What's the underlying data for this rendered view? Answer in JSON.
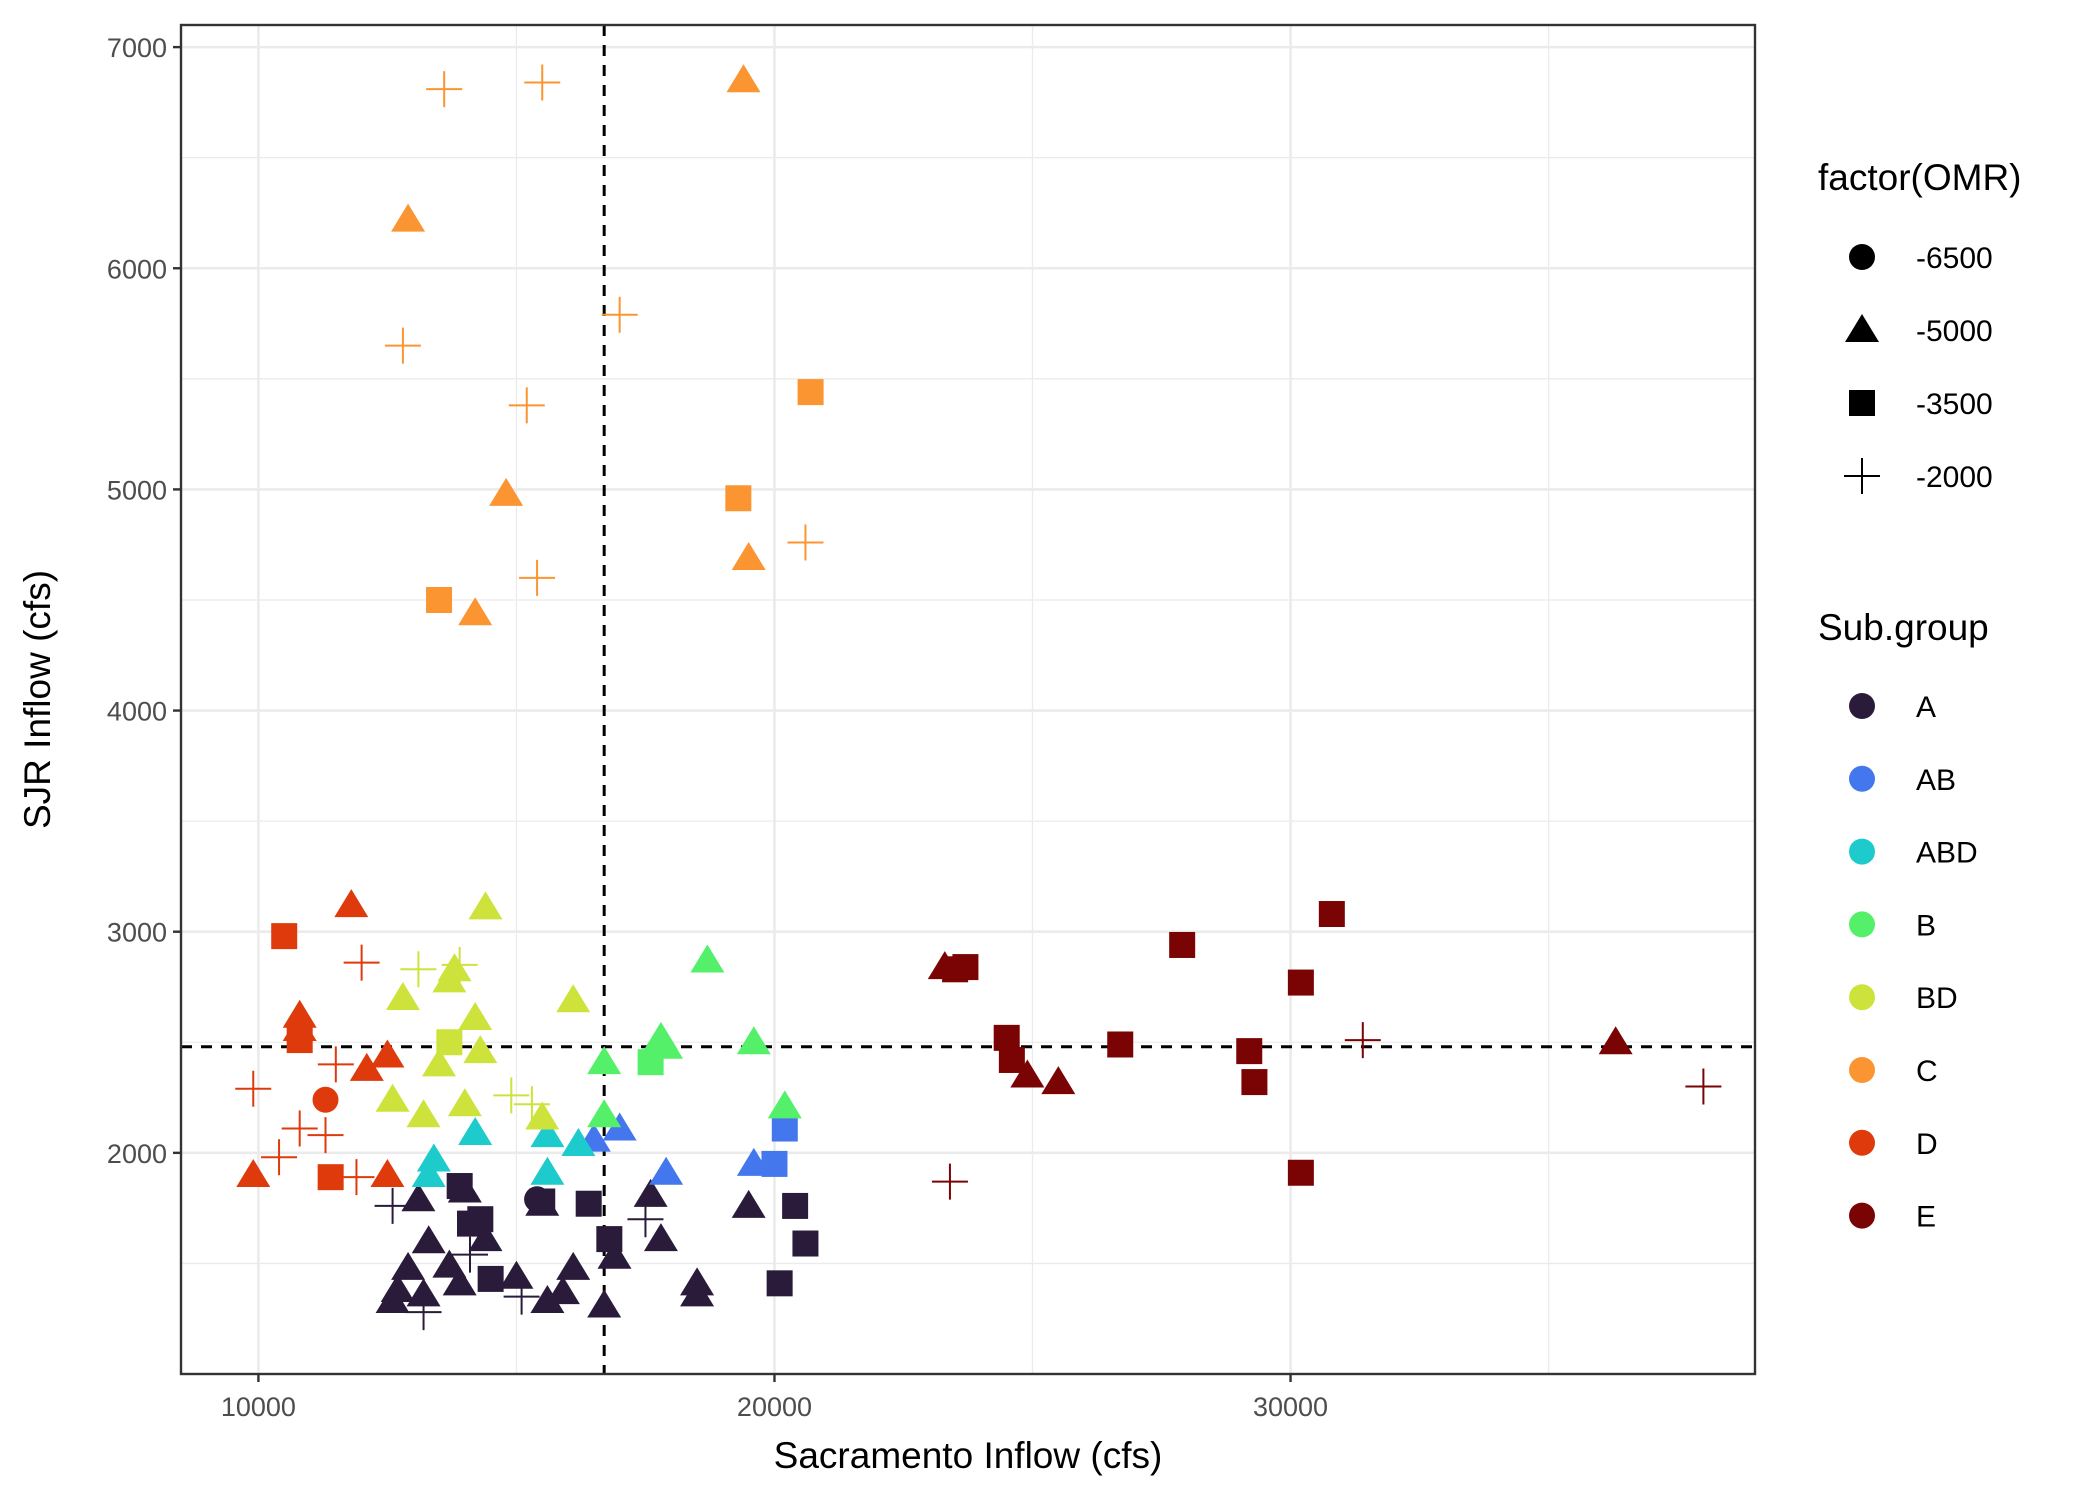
{
  "chart_data": {
    "type": "scatter",
    "title": "",
    "xlabel": "Sacramento Inflow (cfs)",
    "ylabel": "SJR Inflow (cfs)",
    "xlim": [
      8500,
      39000
    ],
    "ylim": [
      1000,
      7100
    ],
    "xticks": [
      10000,
      20000,
      30000
    ],
    "yticks": [
      2000,
      3000,
      4000,
      5000,
      6000,
      7000
    ],
    "x_tick_labels": [
      "10000",
      "20000",
      "30000"
    ],
    "y_tick_labels": [
      "2000",
      "3000",
      "4000",
      "5000",
      "6000",
      "7000"
    ],
    "grid": true,
    "reference_lines": {
      "vertical_x": 16700,
      "horizontal_y": 2480,
      "style": "dashed"
    },
    "legend_position": "right",
    "shape_legend": {
      "title": "factor(OMR)",
      "items": [
        {
          "label": "-6500",
          "shape": "circle"
        },
        {
          "label": "-5000",
          "shape": "triangle"
        },
        {
          "label": "-3500",
          "shape": "square"
        },
        {
          "label": "-2000",
          "shape": "plus"
        }
      ]
    },
    "color_legend": {
      "title": "Sub.group",
      "items": [
        {
          "label": "A",
          "color": "#2b1b3b"
        },
        {
          "label": "AB",
          "color": "#4477ee"
        },
        {
          "label": "ABD",
          "color": "#1ecbcc"
        },
        {
          "label": "B",
          "color": "#55f06a"
        },
        {
          "label": "BD",
          "color": "#cde33c"
        },
        {
          "label": "C",
          "color": "#fb9532"
        },
        {
          "label": "D",
          "color": "#de3a0c"
        },
        {
          "label": "E",
          "color": "#7a0403"
        }
      ]
    },
    "series": [
      {
        "group": "A",
        "points": [
          {
            "x": 12600,
            "y": 1330,
            "omr": "-5000"
          },
          {
            "x": 12700,
            "y": 1380,
            "omr": "-5000"
          },
          {
            "x": 12900,
            "y": 1480,
            "omr": "-5000"
          },
          {
            "x": 13100,
            "y": 1790,
            "omr": "-5000"
          },
          {
            "x": 13200,
            "y": 1360,
            "omr": "-5000"
          },
          {
            "x": 13300,
            "y": 1600,
            "omr": "-5000"
          },
          {
            "x": 13700,
            "y": 1490,
            "omr": "-5000"
          },
          {
            "x": 13900,
            "y": 1410,
            "omr": "-5000"
          },
          {
            "x": 14000,
            "y": 1830,
            "omr": "-5000"
          },
          {
            "x": 14400,
            "y": 1610,
            "omr": "-5000"
          },
          {
            "x": 15000,
            "y": 1440,
            "omr": "-5000"
          },
          {
            "x": 15500,
            "y": 1770,
            "omr": "-5000"
          },
          {
            "x": 15600,
            "y": 1330,
            "omr": "-5000"
          },
          {
            "x": 15900,
            "y": 1370,
            "omr": "-5000"
          },
          {
            "x": 16100,
            "y": 1480,
            "omr": "-5000"
          },
          {
            "x": 16700,
            "y": 1310,
            "omr": "-5000"
          },
          {
            "x": 16900,
            "y": 1530,
            "omr": "-5000"
          },
          {
            "x": 17600,
            "y": 1810,
            "omr": "-5000"
          },
          {
            "x": 17800,
            "y": 1610,
            "omr": "-5000"
          },
          {
            "x": 18500,
            "y": 1360,
            "omr": "-5000"
          },
          {
            "x": 18500,
            "y": 1410,
            "omr": "-5000"
          },
          {
            "x": 19500,
            "y": 1760,
            "omr": "-5000"
          },
          {
            "x": 15400,
            "y": 1790,
            "omr": "-6500"
          },
          {
            "x": 13900,
            "y": 1850,
            "omr": "-3500"
          },
          {
            "x": 14300,
            "y": 1700,
            "omr": "-3500"
          },
          {
            "x": 14100,
            "y": 1680,
            "omr": "-3500"
          },
          {
            "x": 14500,
            "y": 1430,
            "omr": "-3500"
          },
          {
            "x": 15500,
            "y": 1780,
            "omr": "-3500"
          },
          {
            "x": 16400,
            "y": 1770,
            "omr": "-3500"
          },
          {
            "x": 16800,
            "y": 1610,
            "omr": "-3500"
          },
          {
            "x": 20400,
            "y": 1760,
            "omr": "-3500"
          },
          {
            "x": 20600,
            "y": 1590,
            "omr": "-3500"
          },
          {
            "x": 20100,
            "y": 1410,
            "omr": "-3500"
          },
          {
            "x": 12600,
            "y": 1760,
            "omr": "-2000"
          },
          {
            "x": 13200,
            "y": 1280,
            "omr": "-2000"
          },
          {
            "x": 14100,
            "y": 1540,
            "omr": "-2000"
          },
          {
            "x": 15100,
            "y": 1350,
            "omr": "-2000"
          },
          {
            "x": 17500,
            "y": 1700,
            "omr": "-2000"
          }
        ]
      },
      {
        "group": "AB",
        "points": [
          {
            "x": 16500,
            "y": 2060,
            "omr": "-5000"
          },
          {
            "x": 17000,
            "y": 2110,
            "omr": "-5000"
          },
          {
            "x": 17900,
            "y": 1910,
            "omr": "-5000"
          },
          {
            "x": 19600,
            "y": 1950,
            "omr": "-5000"
          },
          {
            "x": 20200,
            "y": 2110,
            "omr": "-3500"
          },
          {
            "x": 20000,
            "y": 1950,
            "omr": "-3500"
          }
        ]
      },
      {
        "group": "ABD",
        "points": [
          {
            "x": 13300,
            "y": 1900,
            "omr": "-5000"
          },
          {
            "x": 13400,
            "y": 1970,
            "omr": "-5000"
          },
          {
            "x": 14200,
            "y": 2090,
            "omr": "-5000"
          },
          {
            "x": 15600,
            "y": 2080,
            "omr": "-5000"
          },
          {
            "x": 15600,
            "y": 1910,
            "omr": "-5000"
          },
          {
            "x": 16200,
            "y": 2040,
            "omr": "-5000"
          }
        ]
      },
      {
        "group": "B",
        "points": [
          {
            "x": 16700,
            "y": 2410,
            "omr": "-5000"
          },
          {
            "x": 16700,
            "y": 2170,
            "omr": "-5000"
          },
          {
            "x": 17800,
            "y": 2520,
            "omr": "-5000"
          },
          {
            "x": 17900,
            "y": 2480,
            "omr": "-5000"
          },
          {
            "x": 18700,
            "y": 2870,
            "omr": "-5000"
          },
          {
            "x": 19600,
            "y": 2500,
            "omr": "-5000"
          },
          {
            "x": 20200,
            "y": 2210,
            "omr": "-5000"
          },
          {
            "x": 17600,
            "y": 2410,
            "omr": "-3500"
          }
        ]
      },
      {
        "group": "BD",
        "points": [
          {
            "x": 12600,
            "y": 2240,
            "omr": "-5000"
          },
          {
            "x": 12800,
            "y": 2700,
            "omr": "-5000"
          },
          {
            "x": 13200,
            "y": 2170,
            "omr": "-5000"
          },
          {
            "x": 13500,
            "y": 2400,
            "omr": "-5000"
          },
          {
            "x": 13700,
            "y": 2780,
            "omr": "-5000"
          },
          {
            "x": 13800,
            "y": 2830,
            "omr": "-5000"
          },
          {
            "x": 14000,
            "y": 2220,
            "omr": "-5000"
          },
          {
            "x": 14200,
            "y": 2610,
            "omr": "-5000"
          },
          {
            "x": 14300,
            "y": 2460,
            "omr": "-5000"
          },
          {
            "x": 14400,
            "y": 3110,
            "omr": "-5000"
          },
          {
            "x": 15500,
            "y": 2160,
            "omr": "-5000"
          },
          {
            "x": 16100,
            "y": 2690,
            "omr": "-5000"
          },
          {
            "x": 13700,
            "y": 2500,
            "omr": "-3500"
          },
          {
            "x": 13100,
            "y": 2830,
            "omr": "-2000"
          },
          {
            "x": 13900,
            "y": 2850,
            "omr": "-2000"
          },
          {
            "x": 14900,
            "y": 2260,
            "omr": "-2000"
          },
          {
            "x": 15300,
            "y": 2220,
            "omr": "-2000"
          }
        ]
      },
      {
        "group": "C",
        "points": [
          {
            "x": 12900,
            "y": 6220,
            "omr": "-5000"
          },
          {
            "x": 14200,
            "y": 4440,
            "omr": "-5000"
          },
          {
            "x": 14800,
            "y": 4980,
            "omr": "-5000"
          },
          {
            "x": 19400,
            "y": 6850,
            "omr": "-5000"
          },
          {
            "x": 19500,
            "y": 4690,
            "omr": "-5000"
          },
          {
            "x": 13500,
            "y": 4500,
            "omr": "-3500"
          },
          {
            "x": 19300,
            "y": 4960,
            "omr": "-3500"
          },
          {
            "x": 20700,
            "y": 5440,
            "omr": "-3500"
          },
          {
            "x": 13600,
            "y": 6810,
            "omr": "-2000"
          },
          {
            "x": 15500,
            "y": 6840,
            "omr": "-2000"
          },
          {
            "x": 12800,
            "y": 5650,
            "omr": "-2000"
          },
          {
            "x": 17000,
            "y": 5790,
            "omr": "-2000"
          },
          {
            "x": 15200,
            "y": 5380,
            "omr": "-2000"
          },
          {
            "x": 15400,
            "y": 4600,
            "omr": "-2000"
          },
          {
            "x": 20600,
            "y": 4760,
            "omr": "-2000"
          }
        ]
      },
      {
        "group": "D",
        "points": [
          {
            "x": 9900,
            "y": 1900,
            "omr": "-5000"
          },
          {
            "x": 10800,
            "y": 2620,
            "omr": "-5000"
          },
          {
            "x": 10800,
            "y": 2560,
            "omr": "-5000"
          },
          {
            "x": 11800,
            "y": 3120,
            "omr": "-5000"
          },
          {
            "x": 12100,
            "y": 2380,
            "omr": "-5000"
          },
          {
            "x": 12500,
            "y": 2440,
            "omr": "-5000"
          },
          {
            "x": 12500,
            "y": 1900,
            "omr": "-5000"
          },
          {
            "x": 11300,
            "y": 2240,
            "omr": "-6500"
          },
          {
            "x": 10500,
            "y": 2980,
            "omr": "-3500"
          },
          {
            "x": 10800,
            "y": 2510,
            "omr": "-3500"
          },
          {
            "x": 11400,
            "y": 1890,
            "omr": "-3500"
          },
          {
            "x": 9900,
            "y": 2290,
            "omr": "-2000"
          },
          {
            "x": 10400,
            "y": 1980,
            "omr": "-2000"
          },
          {
            "x": 10800,
            "y": 2110,
            "omr": "-2000"
          },
          {
            "x": 11300,
            "y": 2080,
            "omr": "-2000"
          },
          {
            "x": 11500,
            "y": 2400,
            "omr": "-2000"
          },
          {
            "x": 11900,
            "y": 1890,
            "omr": "-2000"
          },
          {
            "x": 12000,
            "y": 2860,
            "omr": "-2000"
          }
        ]
      },
      {
        "group": "E",
        "points": [
          {
            "x": 23300,
            "y": 2840,
            "omr": "-5000"
          },
          {
            "x": 24900,
            "y": 2350,
            "omr": "-5000"
          },
          {
            "x": 25500,
            "y": 2320,
            "omr": "-5000"
          },
          {
            "x": 36300,
            "y": 2500,
            "omr": "-5000"
          },
          {
            "x": 23500,
            "y": 2830,
            "omr": "-3500"
          },
          {
            "x": 23700,
            "y": 2840,
            "omr": "-3500"
          },
          {
            "x": 24500,
            "y": 2520,
            "omr": "-3500"
          },
          {
            "x": 24600,
            "y": 2420,
            "omr": "-3500"
          },
          {
            "x": 26700,
            "y": 2490,
            "omr": "-3500"
          },
          {
            "x": 27900,
            "y": 2940,
            "omr": "-3500"
          },
          {
            "x": 29200,
            "y": 2460,
            "omr": "-3500"
          },
          {
            "x": 29300,
            "y": 2320,
            "omr": "-3500"
          },
          {
            "x": 30200,
            "y": 2770,
            "omr": "-3500"
          },
          {
            "x": 30200,
            "y": 1910,
            "omr": "-3500"
          },
          {
            "x": 30800,
            "y": 3080,
            "omr": "-3500"
          },
          {
            "x": 23400,
            "y": 1870,
            "omr": "-2000"
          },
          {
            "x": 31400,
            "y": 2510,
            "omr": "-2000"
          },
          {
            "x": 38000,
            "y": 2300,
            "omr": "-2000"
          }
        ]
      }
    ]
  }
}
